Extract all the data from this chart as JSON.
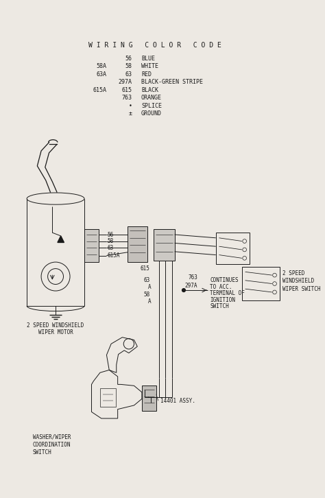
{
  "title": "W I R I N G   C O L O R   C O D E",
  "bg_color": "#ede9e3",
  "text_color": "#1a1a1a",
  "color_codes": [
    {
      "code1": "",
      "code2": "56",
      "name": "BLUE"
    },
    {
      "code1": "58A",
      "code2": "58",
      "name": "WHITE"
    },
    {
      "code1": "63A",
      "code2": "63",
      "name": "RED"
    },
    {
      "code1": "",
      "code2": "297A",
      "name": "BLACK-GREEN STRIPE"
    },
    {
      "code1": "615A",
      "code2": "615",
      "name": "BLACK"
    },
    {
      "code1": "",
      "code2": "763",
      "name": "ORANGE"
    },
    {
      "code1": "",
      "code2": "•",
      "name": "SPLICE"
    },
    {
      "code1": "",
      "code2": "±",
      "name": "GROUND"
    }
  ],
  "label_motor": "2 SPEED WINDSHIELD\nWIPER MOTOR",
  "label_switch_2spd": "2 SPEED\nWINDSHIELD\nWIPER SWITCH",
  "label_washer": "WASHER/WIPER\nCOORDINATION\nSWITCH",
  "label_assy": "14401 ASSY.",
  "label_continues": "CONTINUES\nTO ACC.\nTERMINAL OF\nIGNITION\nSWITCH"
}
